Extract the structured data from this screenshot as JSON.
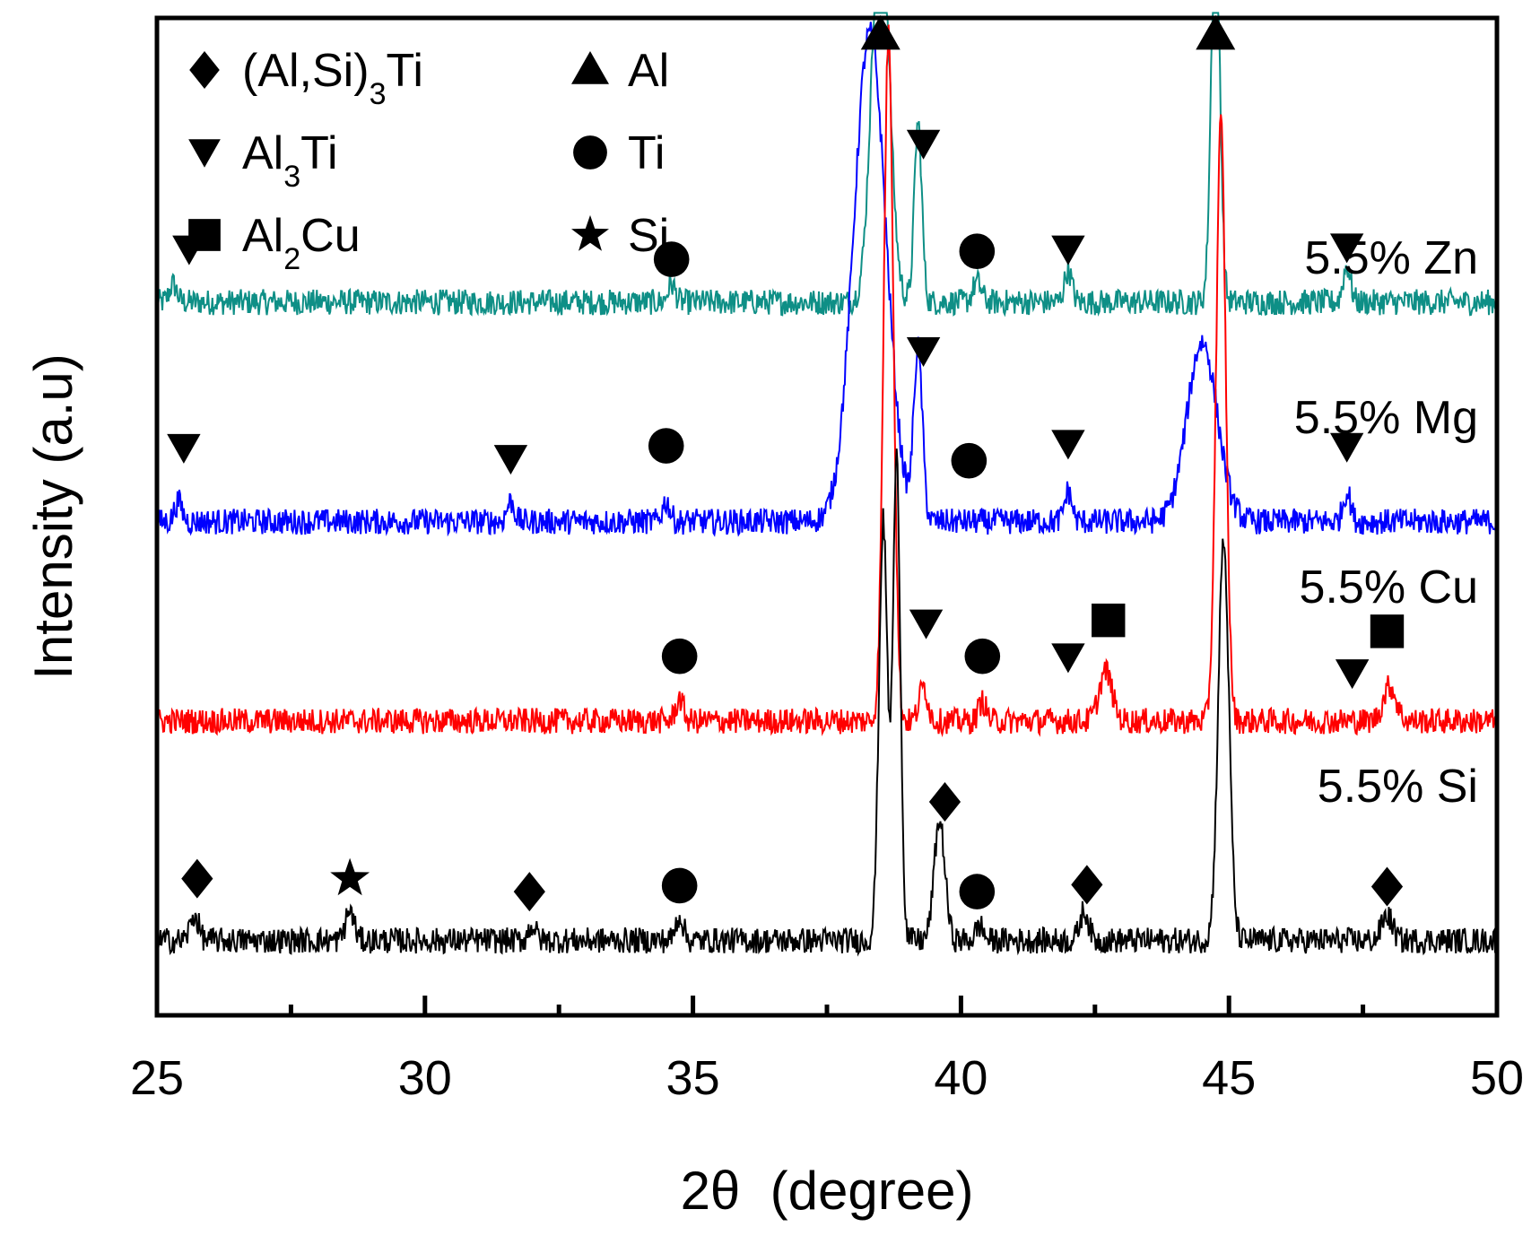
{
  "chart_data": {
    "type": "line",
    "title": "",
    "xlabel": "2θ  (degree)",
    "ylabel": "Intensity (a.u)",
    "xlim": [
      25,
      50
    ],
    "xticks": [
      25,
      30,
      35,
      40,
      45,
      50
    ],
    "xtick_labels": [
      "25",
      "30",
      "35",
      "40",
      "45",
      "50"
    ],
    "ylim": [
      0,
      100
    ],
    "yticks_shown": false,
    "legend_position": "top-left",
    "legend": [
      {
        "marker": "diamond",
        "phase": "(Al,Si)3Ti",
        "parts": [
          "(Al,Si)",
          "3",
          "Ti"
        ]
      },
      {
        "marker": "triangle-up",
        "phase": "Al",
        "parts": [
          "Al",
          "",
          ""
        ]
      },
      {
        "marker": "triangle-down",
        "phase": "Al3Ti",
        "parts": [
          "Al",
          "3",
          "Ti"
        ]
      },
      {
        "marker": "circle",
        "phase": "Ti",
        "parts": [
          "Ti",
          "",
          ""
        ]
      },
      {
        "marker": "square",
        "phase": "Al2Cu",
        "parts": [
          "Al",
          "2",
          "Cu"
        ]
      },
      {
        "marker": "star",
        "phase": "Si",
        "parts": [
          "Si",
          "",
          ""
        ]
      }
    ],
    "series": [
      {
        "name": "5.5% Zn",
        "label": "5.5% Zn",
        "color": "#0e8f86",
        "baseline": 71.5,
        "noise": 1.3,
        "peaks": [
          {
            "x": 25.3,
            "h": 1.8,
            "w": 0.07
          },
          {
            "x": 34.6,
            "h": 1.8,
            "w": 0.07
          },
          {
            "x": 38.5,
            "h": 40,
            "w": 0.16
          },
          {
            "x": 39.2,
            "h": 18,
            "w": 0.07
          },
          {
            "x": 40.3,
            "h": 2,
            "w": 0.08
          },
          {
            "x": 42.0,
            "h": 3.2,
            "w": 0.07
          },
          {
            "x": 44.75,
            "h": 40,
            "w": 0.08
          },
          {
            "x": 47.2,
            "h": 3.6,
            "w": 0.07
          }
        ],
        "markers": [
          {
            "type": "triangle-down",
            "x": 25.6,
            "y": 76.8
          },
          {
            "type": "circle",
            "x": 34.6,
            "y": 75.8
          },
          {
            "type": "triangle-up",
            "x": 38.5,
            "y": 98.3
          },
          {
            "type": "triangle-down",
            "x": 39.3,
            "y": 87.4
          },
          {
            "type": "circle",
            "x": 40.3,
            "y": 76.6
          },
          {
            "type": "triangle-down",
            "x": 42.0,
            "y": 76.8
          },
          {
            "type": "triangle-up",
            "x": 44.75,
            "y": 98.3
          },
          {
            "type": "triangle-down",
            "x": 47.2,
            "y": 77.0
          }
        ]
      },
      {
        "name": "5.5% Mg",
        "label": "5.5% Mg",
        "color": "#0000ff",
        "baseline": 49.5,
        "noise": 1.3,
        "peaks": [
          {
            "x": 25.4,
            "h": 2,
            "w": 0.07
          },
          {
            "x": 31.6,
            "h": 2,
            "w": 0.07
          },
          {
            "x": 34.5,
            "h": 2,
            "w": 0.07
          },
          {
            "x": 38.3,
            "h": 49,
            "w": 0.3
          },
          {
            "x": 39.2,
            "h": 17,
            "w": 0.08
          },
          {
            "x": 42.0,
            "h": 3,
            "w": 0.07
          },
          {
            "x": 44.5,
            "h": 18,
            "w": 0.28
          },
          {
            "x": 47.2,
            "h": 3,
            "w": 0.07
          }
        ],
        "markers": [
          {
            "type": "triangle-down",
            "x": 25.5,
            "y": 56.9
          },
          {
            "type": "triangle-down",
            "x": 31.6,
            "y": 55.8
          },
          {
            "type": "circle",
            "x": 34.5,
            "y": 57.1
          },
          {
            "type": "triangle-down",
            "x": 39.3,
            "y": 66.6
          },
          {
            "type": "circle",
            "x": 40.15,
            "y": 55.6
          },
          {
            "type": "triangle-down",
            "x": 42.0,
            "y": 57.3
          },
          {
            "type": "triangle-down",
            "x": 47.2,
            "y": 57.0
          }
        ]
      },
      {
        "name": "5.5% Cu",
        "label": "5.5% Cu",
        "color": "#ff0000",
        "baseline": 29.5,
        "noise": 1.3,
        "peaks": [
          {
            "x": 34.75,
            "h": 2.2,
            "w": 0.07
          },
          {
            "x": 38.65,
            "h": 69,
            "w": 0.09
          },
          {
            "x": 39.3,
            "h": 3.5,
            "w": 0.08
          },
          {
            "x": 40.4,
            "h": 2,
            "w": 0.07
          },
          {
            "x": 42.7,
            "h": 5,
            "w": 0.12
          },
          {
            "x": 44.85,
            "h": 60,
            "w": 0.09
          },
          {
            "x": 48.0,
            "h": 3.5,
            "w": 0.12
          }
        ],
        "markers": [
          {
            "type": "circle",
            "x": 34.75,
            "y": 36.0
          },
          {
            "type": "triangle-down",
            "x": 39.35,
            "y": 39.3
          },
          {
            "type": "circle",
            "x": 40.4,
            "y": 36.0
          },
          {
            "type": "square",
            "x": 42.75,
            "y": 39.6
          },
          {
            "type": "triangle-down",
            "x": 42.0,
            "y": 35.9
          },
          {
            "type": "square",
            "x": 47.95,
            "y": 38.5
          },
          {
            "type": "triangle-down",
            "x": 47.3,
            "y": 34.3
          }
        ]
      },
      {
        "name": "5.5% Si",
        "label": "5.5% Si",
        "color": "#000000",
        "baseline": 7.5,
        "noise": 1.3,
        "peaks": [
          {
            "x": 25.7,
            "h": 2.5,
            "w": 0.08
          },
          {
            "x": 28.6,
            "h": 3,
            "w": 0.08
          },
          {
            "x": 32.0,
            "h": 1.5,
            "w": 0.07
          },
          {
            "x": 34.75,
            "h": 2.5,
            "w": 0.07
          },
          {
            "x": 38.55,
            "h": 42,
            "w": 0.08
          },
          {
            "x": 38.8,
            "h": 48,
            "w": 0.07
          },
          {
            "x": 39.6,
            "h": 12,
            "w": 0.1
          },
          {
            "x": 40.35,
            "h": 1.5,
            "w": 0.07
          },
          {
            "x": 42.3,
            "h": 3,
            "w": 0.08
          },
          {
            "x": 44.9,
            "h": 40,
            "w": 0.1
          },
          {
            "x": 47.95,
            "h": 2.5,
            "w": 0.1
          }
        ],
        "markers": [
          {
            "type": "diamond",
            "x": 25.75,
            "y": 13.7
          },
          {
            "type": "star",
            "x": 28.6,
            "y": 13.7
          },
          {
            "type": "diamond",
            "x": 31.95,
            "y": 12.4
          },
          {
            "type": "circle",
            "x": 34.75,
            "y": 13.0
          },
          {
            "type": "diamond",
            "x": 39.7,
            "y": 21.4
          },
          {
            "type": "circle",
            "x": 40.3,
            "y": 12.4
          },
          {
            "type": "diamond",
            "x": 42.35,
            "y": 13.1
          },
          {
            "type": "diamond",
            "x": 47.95,
            "y": 12.9
          }
        ]
      }
    ]
  }
}
